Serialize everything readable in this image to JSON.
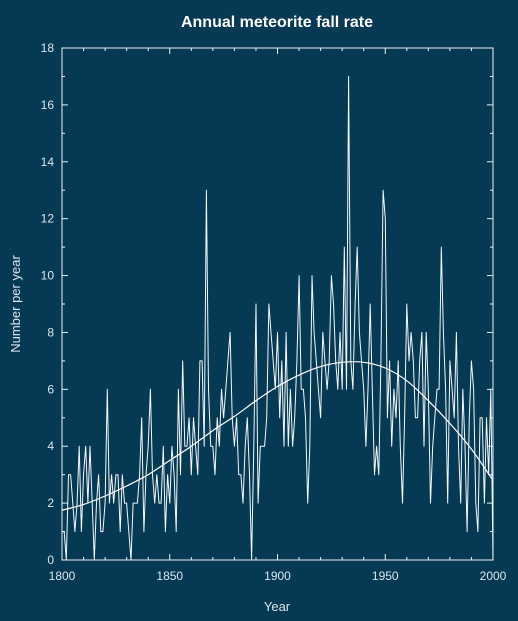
{
  "chart_data": {
    "type": "line",
    "title": "Annual meteorite fall rate",
    "xlabel": "Year",
    "ylabel": "Number per year",
    "xlim": [
      1800,
      2000
    ],
    "ylim": [
      0,
      18
    ],
    "x_ticks": [
      1800,
      1850,
      1900,
      1950,
      2000
    ],
    "y_ticks": [
      0,
      2,
      4,
      6,
      8,
      10,
      12,
      14,
      16,
      18
    ],
    "grid": false,
    "colors": {
      "background": "#063a54",
      "line": "#f4f8fa",
      "text": "#dbe6ec"
    },
    "series": [
      {
        "kind": "annual",
        "x": [
          1800,
          1801,
          1802,
          1803,
          1804,
          1805,
          1806,
          1807,
          1808,
          1809,
          1810,
          1811,
          1812,
          1813,
          1814,
          1815,
          1816,
          1817,
          1818,
          1819,
          1820,
          1821,
          1822,
          1823,
          1824,
          1825,
          1826,
          1827,
          1828,
          1829,
          1830,
          1831,
          1832,
          1833,
          1834,
          1835,
          1836,
          1837,
          1838,
          1839,
          1840,
          1841,
          1842,
          1843,
          1844,
          1845,
          1846,
          1847,
          1848,
          1849,
          1850,
          1851,
          1852,
          1853,
          1854,
          1855,
          1856,
          1857,
          1858,
          1859,
          1860,
          1861,
          1862,
          1863,
          1864,
          1865,
          1866,
          1867,
          1868,
          1869,
          1870,
          1871,
          1872,
          1873,
          1874,
          1875,
          1876,
          1877,
          1878,
          1879,
          1880,
          1881,
          1882,
          1883,
          1884,
          1885,
          1886,
          1887,
          1888,
          1889,
          1890,
          1891,
          1892,
          1893,
          1894,
          1895,
          1896,
          1897,
          1898,
          1899,
          1900,
          1901,
          1902,
          1903,
          1904,
          1905,
          1906,
          1907,
          1908,
          1909,
          1910,
          1911,
          1912,
          1913,
          1914,
          1915,
          1916,
          1917,
          1918,
          1919,
          1920,
          1921,
          1922,
          1923,
          1924,
          1925,
          1926,
          1927,
          1928,
          1929,
          1930,
          1931,
          1932,
          1933,
          1934,
          1935,
          1936,
          1937,
          1938,
          1939,
          1940,
          1941,
          1942,
          1943,
          1944,
          1945,
          1946,
          1947,
          1948,
          1949,
          1950,
          1951,
          1952,
          1953,
          1954,
          1955,
          1956,
          1957,
          1958,
          1959,
          1960,
          1961,
          1962,
          1963,
          1964,
          1965,
          1966,
          1967,
          1968,
          1969,
          1970,
          1971,
          1972,
          1973,
          1974,
          1975,
          1976,
          1977,
          1978,
          1979,
          1980,
          1981,
          1982,
          1983,
          1984,
          1985,
          1986,
          1987,
          1988,
          1989,
          1990,
          1991,
          1992,
          1993,
          1994,
          1995,
          1996,
          1997,
          1998,
          1999,
          2000
        ],
        "values": [
          1,
          1,
          0,
          3,
          3,
          2,
          1,
          2,
          4,
          1,
          3,
          4,
          2,
          4,
          2,
          0,
          2,
          3,
          1,
          1,
          2,
          6,
          2,
          3,
          2,
          3,
          3,
          1,
          3,
          2,
          2,
          1,
          0,
          2,
          2,
          2,
          3,
          5,
          1,
          3,
          4,
          6,
          3,
          2,
          3,
          2,
          2,
          4,
          1,
          3,
          2,
          4,
          3,
          1,
          6,
          3,
          7,
          4,
          4,
          5,
          3,
          5,
          4,
          3,
          7,
          7,
          4,
          13,
          6,
          4,
          4,
          3,
          5,
          4,
          6,
          5,
          6,
          7,
          8,
          5,
          4,
          5,
          3,
          3,
          2,
          4,
          5,
          3,
          0,
          4,
          9,
          2,
          4,
          4,
          4,
          5,
          9,
          8,
          7,
          6,
          8,
          5,
          7,
          4,
          8,
          4,
          6,
          4,
          5,
          7,
          10,
          6,
          6,
          5,
          2,
          4,
          10,
          8,
          7,
          6,
          5,
          8,
          7,
          6,
          7,
          10,
          9,
          7,
          6,
          8,
          6,
          11,
          6,
          17,
          7,
          6,
          9,
          11,
          8,
          7,
          6,
          4,
          6,
          9,
          6,
          3,
          4,
          3,
          7,
          13,
          12,
          5,
          7,
          4,
          6,
          5,
          7,
          4,
          2,
          5,
          9,
          7,
          8,
          7,
          5,
          5,
          7,
          8,
          4,
          8,
          6,
          2,
          4,
          5,
          6,
          6,
          11,
          8,
          6,
          2,
          7,
          6,
          5,
          8,
          4,
          2,
          6,
          4,
          1,
          5,
          7,
          6,
          2,
          1,
          5,
          5,
          2,
          5,
          3,
          6,
          0
        ],
        "color": "#f4f8fa"
      },
      {
        "kind": "smoothed",
        "x": [
          1800,
          1810,
          1820,
          1830,
          1840,
          1850,
          1860,
          1870,
          1880,
          1890,
          1900,
          1910,
          1920,
          1930,
          1940,
          1950,
          1960,
          1970,
          1980,
          1990,
          2000
        ],
        "values": [
          1.75,
          1.95,
          2.25,
          2.6,
          3.0,
          3.5,
          4.0,
          4.55,
          5.05,
          5.6,
          6.1,
          6.5,
          6.8,
          6.95,
          6.95,
          6.75,
          6.3,
          5.6,
          4.8,
          3.9,
          2.8
        ],
        "color": "#ffffff"
      }
    ]
  }
}
